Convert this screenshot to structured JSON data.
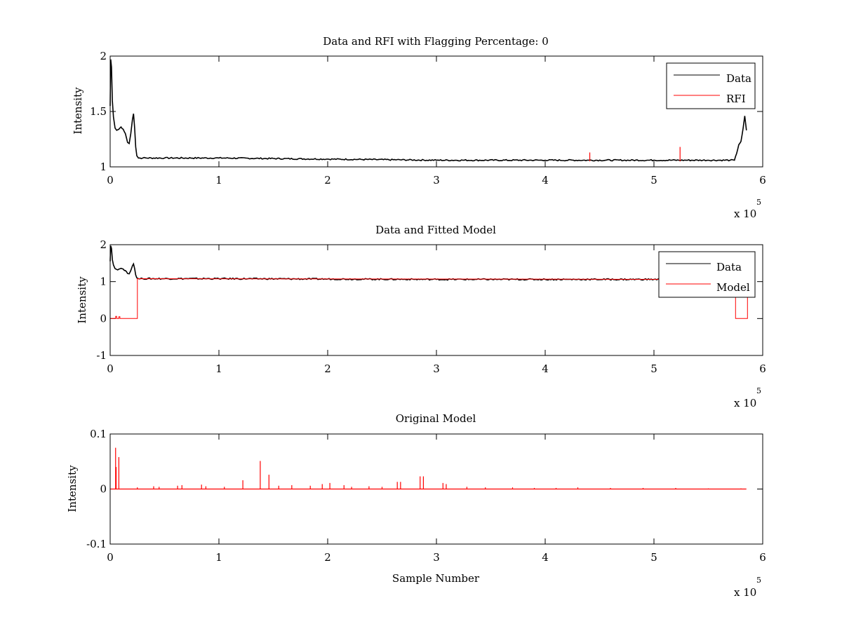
{
  "figure": {
    "background": "#ffffff",
    "data_color": "#000000",
    "rfi_color": "#ff0000"
  },
  "chart_data": [
    {
      "type": "line",
      "title": "Data and RFI with Flagging Percentage: 0",
      "xlabel": "",
      "ylabel": "Intensity",
      "xlim": [
        0,
        6
      ],
      "ylim": [
        1,
        2
      ],
      "x_exponent_label": "x 10",
      "x_exponent": "5",
      "x_ticks": [
        "0",
        "1",
        "2",
        "3",
        "4",
        "5",
        "6"
      ],
      "y_ticks": [
        "1",
        "1.5",
        "2"
      ],
      "legend": {
        "placement": "top-right",
        "entries": [
          "Data",
          "RFI"
        ]
      },
      "series": [
        {
          "name": "Data",
          "color": "#000000",
          "x": [
            0.0,
            0.005,
            0.012,
            0.02,
            0.03,
            0.045,
            0.06,
            0.08,
            0.1,
            0.12,
            0.14,
            0.16,
            0.175,
            0.19,
            0.205,
            0.215,
            0.225,
            0.235,
            0.245,
            0.26,
            0.3,
            0.5,
            1.0,
            2.0,
            3.0,
            4.0,
            4.4,
            5.0,
            5.5,
            5.7,
            5.74,
            5.76,
            5.78,
            5.8,
            5.82,
            5.835,
            5.85
          ],
          "values": [
            1.55,
            1.97,
            1.9,
            1.6,
            1.45,
            1.35,
            1.33,
            1.34,
            1.36,
            1.34,
            1.3,
            1.22,
            1.21,
            1.3,
            1.43,
            1.48,
            1.35,
            1.18,
            1.1,
            1.08,
            1.08,
            1.08,
            1.08,
            1.07,
            1.06,
            1.06,
            1.06,
            1.06,
            1.06,
            1.06,
            1.06,
            1.12,
            1.2,
            1.23,
            1.35,
            1.46,
            1.33
          ]
        },
        {
          "name": "RFI",
          "color": "#ff0000",
          "spikes": [
            {
              "x": 4.41,
              "base": 1.05,
              "top": 1.13
            },
            {
              "x": 5.24,
              "base": 1.05,
              "top": 1.18
            }
          ]
        }
      ]
    },
    {
      "type": "line",
      "title": "Data and Fitted Model",
      "xlabel": "",
      "ylabel": "Intensity",
      "xlim": [
        0,
        6
      ],
      "ylim": [
        -1,
        2
      ],
      "x_exponent_label": "x 10",
      "x_exponent": "5",
      "x_ticks": [
        "0",
        "1",
        "2",
        "3",
        "4",
        "5",
        "6"
      ],
      "y_ticks": [
        "-1",
        "0",
        "1",
        "2"
      ],
      "legend": {
        "placement": "top-right",
        "entries": [
          "Data",
          "Model"
        ]
      },
      "series": [
        {
          "name": "Data",
          "color": "#000000",
          "x": [
            0.0,
            0.005,
            0.012,
            0.02,
            0.03,
            0.045,
            0.06,
            0.08,
            0.1,
            0.12,
            0.14,
            0.16,
            0.175,
            0.19,
            0.205,
            0.215,
            0.225,
            0.235,
            0.245,
            0.26,
            0.3,
            0.5,
            1.0,
            2.0,
            3.0,
            4.0,
            4.4,
            5.0,
            5.5,
            5.7,
            5.74,
            5.76,
            5.78,
            5.8,
            5.82,
            5.835,
            5.85
          ],
          "values": [
            1.55,
            1.97,
            1.9,
            1.6,
            1.45,
            1.35,
            1.33,
            1.34,
            1.36,
            1.34,
            1.3,
            1.22,
            1.21,
            1.3,
            1.43,
            1.48,
            1.35,
            1.18,
            1.1,
            1.08,
            1.08,
            1.08,
            1.08,
            1.07,
            1.06,
            1.06,
            1.06,
            1.06,
            1.06,
            1.06,
            1.06,
            1.12,
            1.2,
            1.23,
            1.35,
            1.46,
            1.33
          ]
        },
        {
          "name": "Model",
          "color": "#ff0000",
          "x": [
            0.0,
            0.05,
            0.05,
            0.06,
            0.06,
            0.08,
            0.08,
            0.09,
            0.09,
            0.25,
            0.25,
            5.75,
            5.75,
            5.86,
            5.86
          ],
          "values": [
            0.0,
            0.0,
            0.06,
            0.06,
            0.0,
            0.0,
            0.05,
            0.05,
            0.0,
            0.0,
            1.08,
            1.06,
            0.0,
            0.0,
            0.6
          ]
        }
      ]
    },
    {
      "type": "line",
      "title": "Original Model",
      "xlabel": "Sample Number",
      "ylabel": "Intensity",
      "xlim": [
        0,
        6
      ],
      "ylim": [
        -0.1,
        0.1
      ],
      "x_exponent_label": "x 10",
      "x_exponent": "5",
      "x_ticks": [
        "0",
        "1",
        "2",
        "3",
        "4",
        "5",
        "6"
      ],
      "y_ticks": [
        "-0.1",
        "0",
        "0.1"
      ],
      "series": [
        {
          "name": "Model",
          "color": "#ff0000",
          "x_range": [
            0,
            5.85
          ],
          "baseline": 0,
          "spikes": [
            {
              "x": 0.05,
              "top": 0.075
            },
            {
              "x": 0.055,
              "top": 0.04
            },
            {
              "x": 0.08,
              "top": 0.058
            },
            {
              "x": 0.25,
              "top": 0.003
            },
            {
              "x": 0.4,
              "top": 0.005
            },
            {
              "x": 0.45,
              "top": 0.004
            },
            {
              "x": 0.62,
              "top": 0.006
            },
            {
              "x": 0.66,
              "top": 0.007
            },
            {
              "x": 0.84,
              "top": 0.008
            },
            {
              "x": 0.88,
              "top": 0.005
            },
            {
              "x": 1.05,
              "top": 0.004
            },
            {
              "x": 1.22,
              "top": 0.016
            },
            {
              "x": 1.38,
              "top": 0.051
            },
            {
              "x": 1.46,
              "top": 0.026
            },
            {
              "x": 1.55,
              "top": 0.006
            },
            {
              "x": 1.67,
              "top": 0.007
            },
            {
              "x": 1.84,
              "top": 0.006
            },
            {
              "x": 1.95,
              "top": 0.009
            },
            {
              "x": 2.02,
              "top": 0.011
            },
            {
              "x": 2.15,
              "top": 0.007
            },
            {
              "x": 2.22,
              "top": 0.004
            },
            {
              "x": 2.38,
              "top": 0.005
            },
            {
              "x": 2.5,
              "top": 0.004
            },
            {
              "x": 2.64,
              "top": 0.013
            },
            {
              "x": 2.67,
              "top": 0.013
            },
            {
              "x": 2.85,
              "top": 0.023
            },
            {
              "x": 2.88,
              "top": 0.023
            },
            {
              "x": 3.06,
              "top": 0.011
            },
            {
              "x": 3.09,
              "top": 0.009
            },
            {
              "x": 3.28,
              "top": 0.004
            },
            {
              "x": 3.45,
              "top": 0.003
            },
            {
              "x": 3.7,
              "top": 0.003
            },
            {
              "x": 3.9,
              "top": 0.002
            },
            {
              "x": 4.1,
              "top": 0.002
            },
            {
              "x": 4.3,
              "top": 0.003
            },
            {
              "x": 4.6,
              "top": 0.002
            },
            {
              "x": 4.9,
              "top": 0.002
            },
            {
              "x": 5.2,
              "top": 0.002
            },
            {
              "x": 5.5,
              "top": 0.001
            },
            {
              "x": 5.8,
              "top": 0.001
            }
          ]
        }
      ]
    }
  ]
}
